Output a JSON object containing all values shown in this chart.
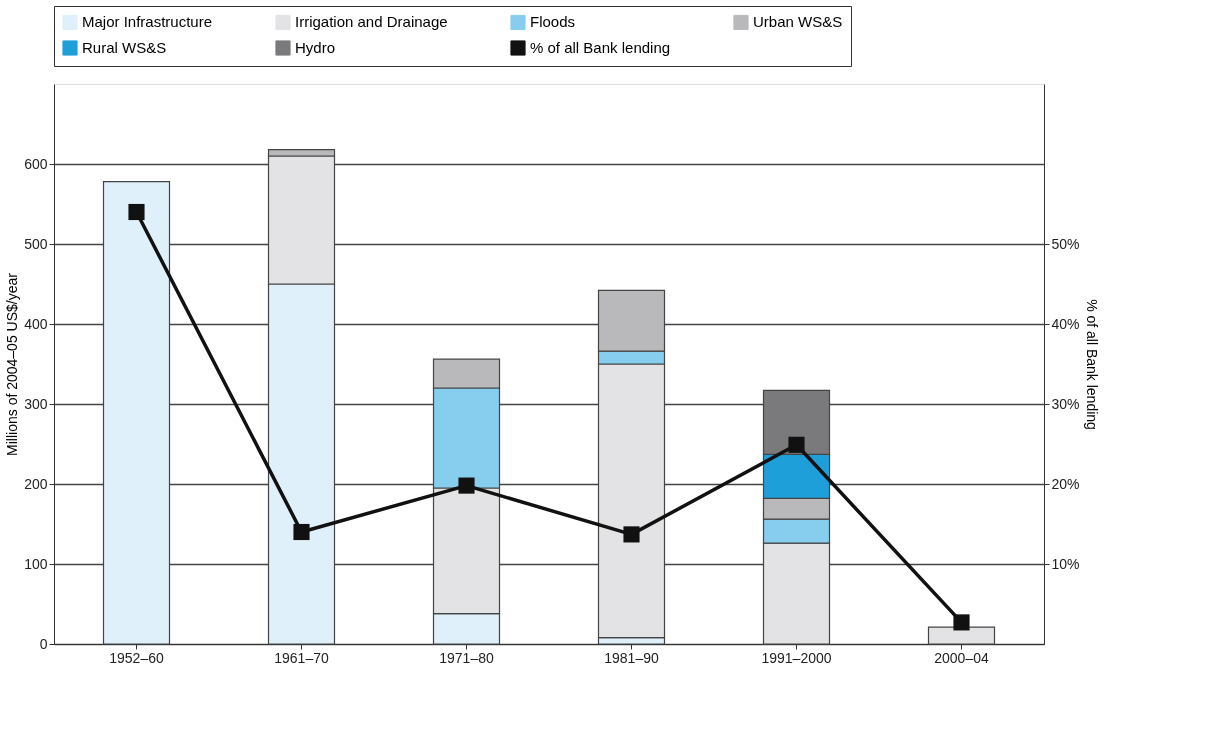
{
  "chart_data": {
    "type": "bar",
    "stacked": true,
    "categories": [
      "1952–60",
      "1961–70",
      "1971–80",
      "1981–90",
      "1991–2000",
      "2000–04"
    ],
    "ylabel": "Millions of 2004–05 US$/year",
    "y2label": "% of all Bank lending",
    "ylim": [
      0,
      700
    ],
    "yticks": [
      0,
      100,
      200,
      300,
      400,
      500,
      600
    ],
    "y2lim": [
      0,
      70
    ],
    "y2ticks": [
      {
        "value": 10,
        "label": "10%"
      },
      {
        "value": 20,
        "label": "20%"
      },
      {
        "value": 30,
        "label": "30%"
      },
      {
        "value": 40,
        "label": "40%"
      },
      {
        "value": 50,
        "label": "50%"
      }
    ],
    "grid": "y",
    "legend": "top",
    "series": [
      {
        "name": "Major Infrastructure",
        "color": "#dff0fa",
        "values": [
          578,
          450,
          38,
          8,
          null,
          null
        ]
      },
      {
        "name": "Irrigation and Drainage",
        "color": "#e3e3e5",
        "values": [
          null,
          160,
          157,
          342,
          126,
          21
        ]
      },
      {
        "name": "Floods",
        "color": "#86cdee",
        "values": [
          null,
          null,
          125,
          16,
          30,
          null
        ]
      },
      {
        "name": "Urban WS&S",
        "color": "#b9b9bb",
        "values": [
          null,
          8,
          36,
          76,
          26,
          null
        ]
      },
      {
        "name": "Rural WS&S",
        "color": "#1f9fda",
        "values": [
          null,
          null,
          null,
          null,
          55,
          null
        ]
      },
      {
        "name": "Hydro",
        "color": "#7a7a7c",
        "values": [
          null,
          null,
          null,
          null,
          80,
          null
        ]
      },
      {
        "name": "% of all Bank lending",
        "type": "line",
        "axis": "y2",
        "color": "#111111",
        "marker": "square",
        "values": [
          54,
          14,
          19.8,
          13.7,
          24.9,
          2.7
        ]
      }
    ]
  }
}
